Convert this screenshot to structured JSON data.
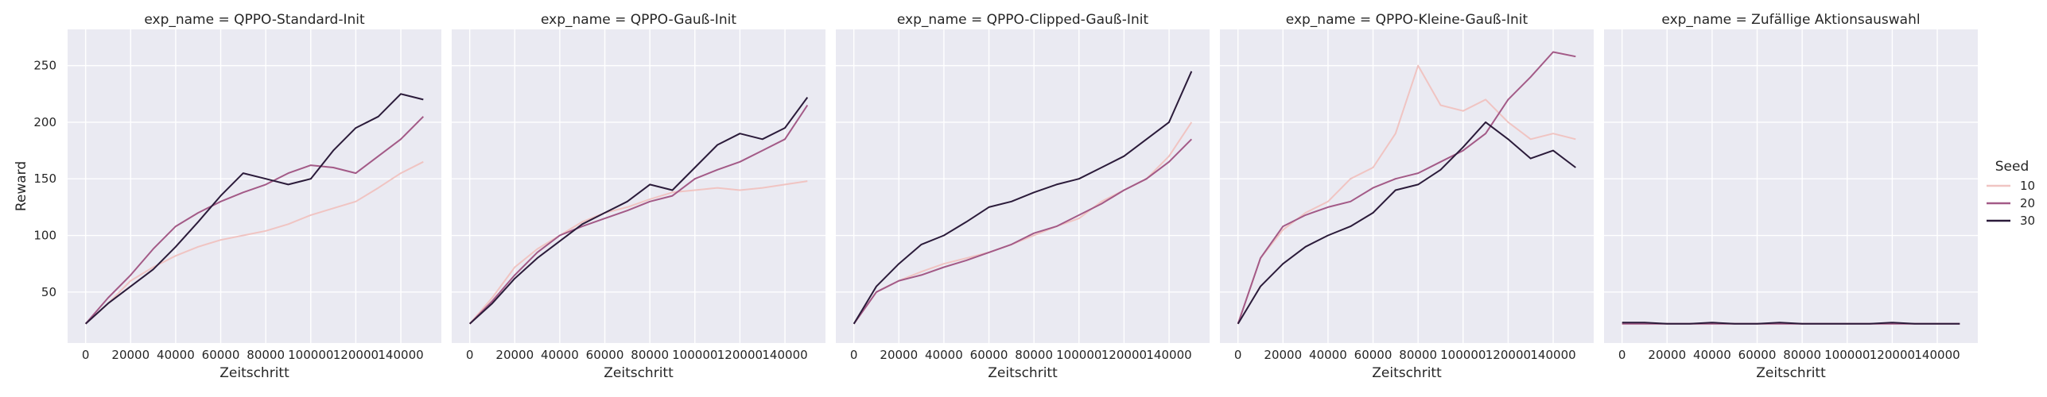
{
  "chart_data": {
    "type": "line",
    "ylabel": "Reward",
    "xlabel": "Zeitschritt",
    "xlim": [
      -8000,
      158000
    ],
    "ylim": [
      5,
      282
    ],
    "x_ticks": [
      0,
      20000,
      40000,
      60000,
      80000,
      100000,
      120000,
      140000
    ],
    "x_tick_labels": [
      "0",
      "20000",
      "40000",
      "60000",
      "80000",
      "100000",
      "120000",
      "140000"
    ],
    "y_ticks": [
      50,
      100,
      150,
      200,
      250
    ],
    "y_tick_labels": [
      "50",
      "100",
      "150",
      "200",
      "250"
    ],
    "grid": true,
    "legend": {
      "title": "Seed",
      "position": "right",
      "entries": [
        {
          "label": "10",
          "color": "#f0c4c2"
        },
        {
          "label": "20",
          "color": "#a35a87"
        },
        {
          "label": "30",
          "color": "#2b1b3a"
        }
      ]
    },
    "x": [
      0,
      10000,
      20000,
      30000,
      40000,
      50000,
      60000,
      70000,
      80000,
      90000,
      100000,
      110000,
      120000,
      130000,
      140000,
      150000
    ],
    "facets": [
      {
        "title": "exp_name = QPPO-Standard-Init",
        "series": [
          {
            "name": "10",
            "values": [
              22,
              40,
              60,
              72,
              82,
              90,
              96,
              100,
              104,
              110,
              118,
              124,
              130,
              142,
              155,
              165
            ]
          },
          {
            "name": "20",
            "values": [
              22,
              45,
              65,
              88,
              108,
              120,
              130,
              138,
              145,
              155,
              162,
              160,
              155,
              170,
              185,
              205
            ]
          },
          {
            "name": "30",
            "values": [
              22,
              40,
              55,
              70,
              90,
              112,
              135,
              155,
              150,
              145,
              150,
              175,
              195,
              205,
              225,
              220
            ]
          }
        ]
      },
      {
        "title": "exp_name = QPPO-Gauß-Init",
        "series": [
          {
            "name": "10",
            "values": [
              22,
              45,
              72,
              88,
              100,
              112,
              120,
              125,
              132,
              138,
              140,
              142,
              140,
              142,
              145,
              148
            ]
          },
          {
            "name": "20",
            "values": [
              22,
              42,
              65,
              85,
              100,
              108,
              115,
              122,
              130,
              135,
              150,
              158,
              165,
              175,
              185,
              215
            ]
          },
          {
            "name": "30",
            "values": [
              22,
              40,
              62,
              80,
              95,
              110,
              120,
              130,
              145,
              140,
              160,
              180,
              190,
              185,
              195,
              222
            ]
          }
        ]
      },
      {
        "title": "exp_name = QPPO-Clipped-Gauß-Init",
        "series": [
          {
            "name": "10",
            "values": [
              22,
              50,
              60,
              68,
              75,
              80,
              85,
              92,
              100,
              108,
              115,
              130,
              140,
              150,
              170,
              200
            ]
          },
          {
            "name": "20",
            "values": [
              22,
              50,
              60,
              65,
              72,
              78,
              85,
              92,
              102,
              108,
              118,
              128,
              140,
              150,
              165,
              185
            ]
          },
          {
            "name": "30",
            "values": [
              22,
              55,
              75,
              92,
              100,
              112,
              125,
              130,
              138,
              145,
              150,
              160,
              170,
              185,
              200,
              245
            ]
          }
        ]
      },
      {
        "title": "exp_name = QPPO-Kleine-Gauß-Init",
        "series": [
          {
            "name": "10",
            "values": [
              22,
              80,
              105,
              120,
              130,
              150,
              160,
              190,
              250,
              215,
              210,
              220,
              200,
              185,
              190,
              185
            ]
          },
          {
            "name": "20",
            "values": [
              22,
              80,
              108,
              118,
              125,
              130,
              142,
              150,
              155,
              165,
              175,
              190,
              220,
              240,
              262,
              258
            ]
          },
          {
            "name": "30",
            "values": [
              22,
              55,
              75,
              90,
              100,
              108,
              120,
              140,
              145,
              158,
              178,
              200,
              185,
              168,
              175,
              160
            ]
          }
        ]
      },
      {
        "title": "exp_name = Zufällige Aktionsauswahl",
        "series": [
          {
            "name": "10",
            "values": [
              22,
              22,
              22,
              22,
              22,
              22,
              22,
              22,
              22,
              22,
              22,
              22,
              22,
              22,
              22,
              22
            ]
          },
          {
            "name": "20",
            "values": [
              22,
              22,
              22,
              22,
              22,
              22,
              22,
              22,
              22,
              22,
              22,
              22,
              22,
              22,
              22,
              22
            ]
          },
          {
            "name": "30",
            "values": [
              23,
              23,
              22,
              22,
              23,
              22,
              22,
              23,
              22,
              22,
              22,
              22,
              23,
              22,
              22,
              22
            ]
          }
        ]
      }
    ]
  }
}
